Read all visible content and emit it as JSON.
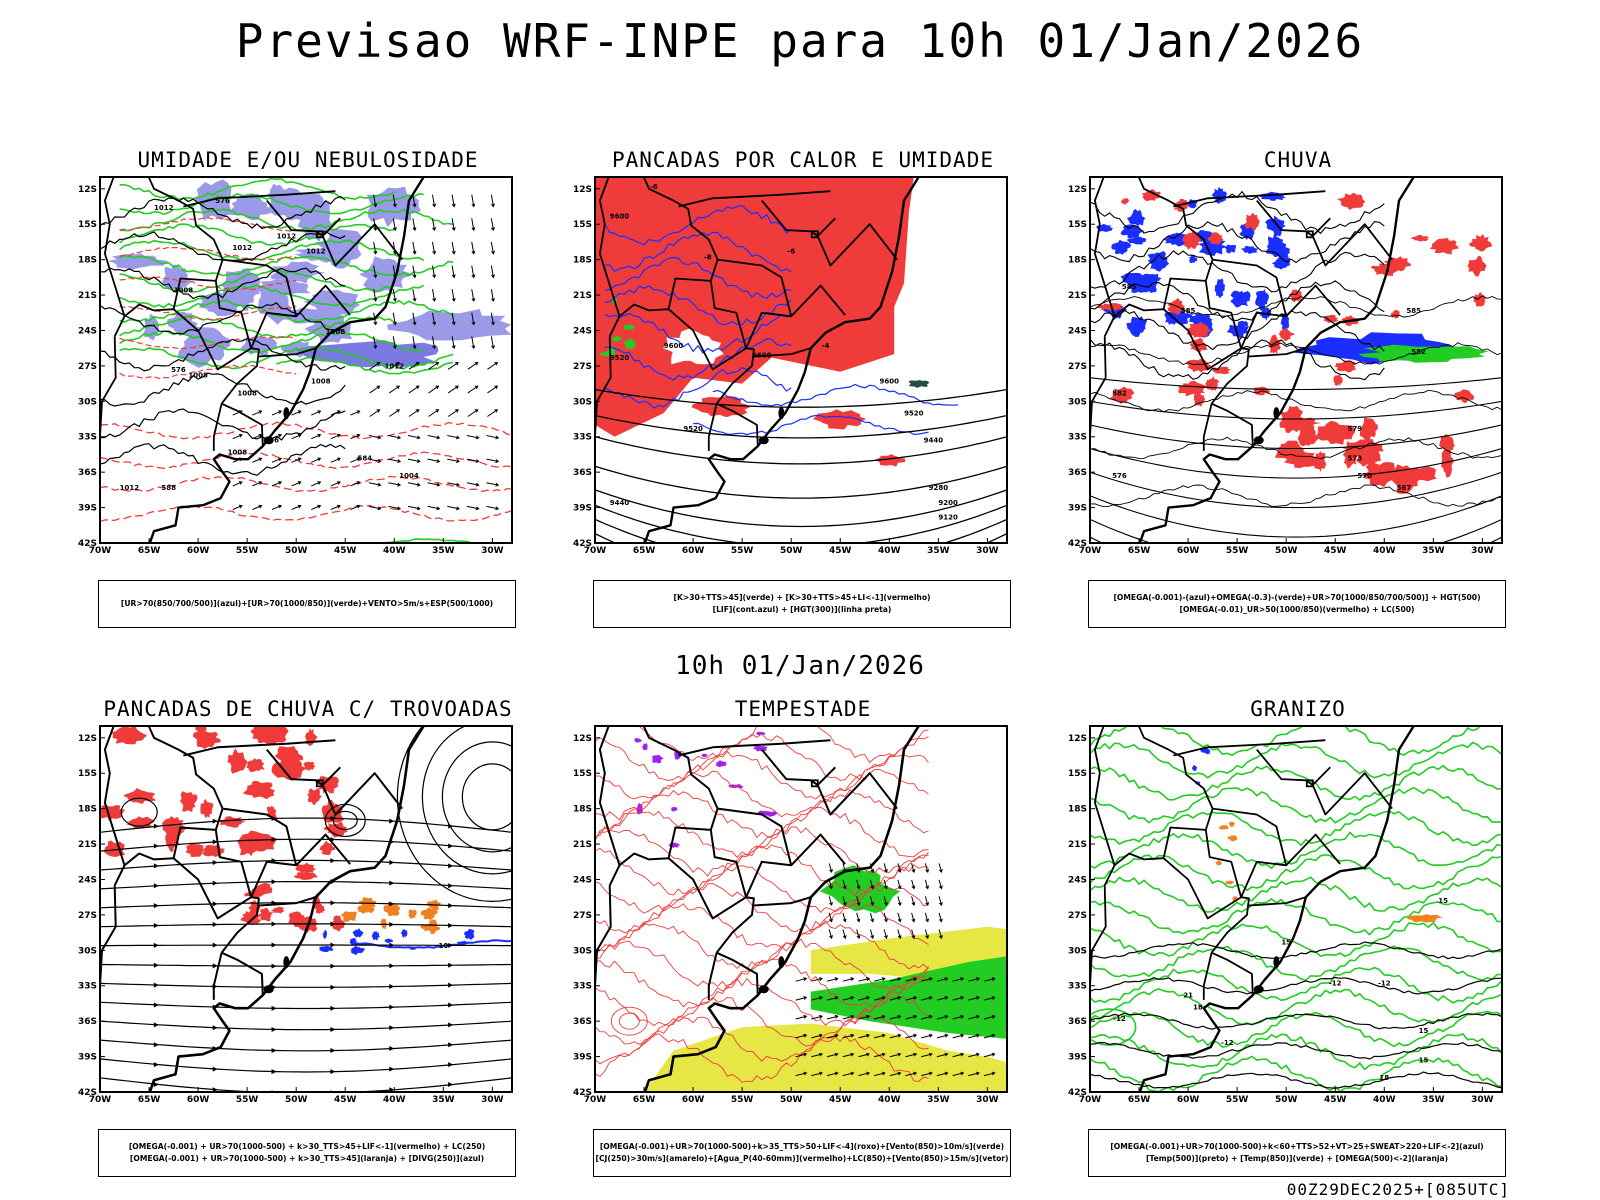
{
  "title": "Previsao WRF-INPE  para 10h 01/Jan/2026",
  "mid_title": "10h 01/Jan/2026",
  "footer": "00Z29DEC2025+[085UTC]",
  "axes": {
    "lat_ticks": [
      "12S",
      "15S",
      "18S",
      "21S",
      "24S",
      "27S",
      "30S",
      "33S",
      "36S",
      "39S",
      "42S"
    ],
    "lon_ticks": [
      "70W",
      "65W",
      "60W",
      "55W",
      "50W",
      "45W",
      "40W",
      "35W",
      "30W"
    ]
  },
  "colors": {
    "red": "#f03b3b",
    "blue": "#1a2fff",
    "green": "#22cc22",
    "lavender": "#9a9ae8",
    "yellow": "#e6e645",
    "purple": "#a020f0",
    "orange": "#f08020",
    "black": "#000000"
  },
  "chart_data": [
    {
      "type": "contour-map",
      "title": "UMIDADE E/OU NEBULOSIDADE",
      "legend": [
        "[UR>70(850/700/500)](azul)+[UR>70(1000/850)](verde)+VENTO>5m/s+ESP(500/1000)"
      ],
      "xlim": [
        -70,
        -28
      ],
      "ylim": [
        -42,
        -11
      ],
      "contour_labels": [
        {
          "text": "1012",
          "lon": -63.5,
          "lat": -13.8
        },
        {
          "text": "1012",
          "lon": -51,
          "lat": -16.2
        },
        {
          "text": "1012",
          "lon": -48,
          "lat": -17.5
        },
        {
          "text": "1012",
          "lon": -55.5,
          "lat": -17.2
        },
        {
          "text": "1008",
          "lon": -61.5,
          "lat": -20.8
        },
        {
          "text": "1008",
          "lon": -46,
          "lat": -24.3
        },
        {
          "text": "1008",
          "lon": -60,
          "lat": -28
        },
        {
          "text": "1008",
          "lon": -47.5,
          "lat": -28.5
        },
        {
          "text": "1008",
          "lon": -55,
          "lat": -29.5
        },
        {
          "text": "1012",
          "lon": -40,
          "lat": -27.2
        },
        {
          "text": "1008",
          "lon": -56,
          "lat": -34.5
        },
        {
          "text": "1012",
          "lon": -67,
          "lat": -37.5
        },
        {
          "text": "576",
          "lon": -57.5,
          "lat": -13.2
        },
        {
          "text": "576",
          "lon": -62,
          "lat": -27.5
        },
        {
          "text": "576",
          "lon": -52.5,
          "lat": -33.5
        },
        {
          "text": "584",
          "lon": -43,
          "lat": -35
        },
        {
          "text": "588",
          "lon": -63,
          "lat": -37.5
        },
        {
          "text": "1004",
          "lon": -38.5,
          "lat": -36.5
        }
      ]
    },
    {
      "type": "contour-map",
      "title": "PANCADAS POR CALOR E UMIDADE",
      "legend": [
        "[K>30+TTS>45](verde) + [K>30+TTS>45+LI<-1](vermelho)",
        "[LIF](cont.azul) + [HGT(300)](linha preta)"
      ],
      "xlim": [
        -70,
        -28
      ],
      "ylim": [
        -42,
        -11
      ],
      "contour_labels": [
        {
          "text": "9600",
          "lon": -67.5,
          "lat": -14.5
        },
        {
          "text": "9600",
          "lon": -62,
          "lat": -25.5
        },
        {
          "text": "9520",
          "lon": -67.5,
          "lat": -26.5
        },
        {
          "text": "9600",
          "lon": -53,
          "lat": -26.3
        },
        {
          "text": "9600",
          "lon": -40,
          "lat": -28.5
        },
        {
          "text": "9520",
          "lon": -37.5,
          "lat": -31.2
        },
        {
          "text": "9520",
          "lon": -60,
          "lat": -32.5
        },
        {
          "text": "9440",
          "lon": -35.5,
          "lat": -33.5
        },
        {
          "text": "9440",
          "lon": -67.5,
          "lat": -38.8
        },
        {
          "text": "9280",
          "lon": -35,
          "lat": -37.5
        },
        {
          "text": "9200",
          "lon": -34,
          "lat": -38.8
        },
        {
          "text": "9120",
          "lon": -34,
          "lat": -40
        },
        {
          "text": "-6",
          "lon": -64,
          "lat": -12
        },
        {
          "text": "-8",
          "lon": -58.5,
          "lat": -18
        },
        {
          "text": "-6",
          "lon": -50,
          "lat": -17.5
        },
        {
          "text": "-4",
          "lon": -46.5,
          "lat": -25.5
        }
      ]
    },
    {
      "type": "contour-map",
      "title": "CHUVA",
      "legend": [
        "[OMEGA(-0.001)-(azul)+OMEGA(-0.3)-(verde)+UR>70(1000/850/700/500)] + HGT(500)",
        "[OMEGA(-0.01)_UR>50(1000/850)(vermelho) + LC(500)"
      ],
      "xlim": [
        -70,
        -28
      ],
      "ylim": [
        -42,
        -11
      ],
      "contour_labels": [
        {
          "text": "585",
          "lon": -66,
          "lat": -20.5
        },
        {
          "text": "585",
          "lon": -60,
          "lat": -22.5
        },
        {
          "text": "585",
          "lon": -37,
          "lat": -22.5
        },
        {
          "text": "582",
          "lon": -36.5,
          "lat": -26
        },
        {
          "text": "582",
          "lon": -67,
          "lat": -29.5
        },
        {
          "text": "579",
          "lon": -43,
          "lat": -32.5
        },
        {
          "text": "573",
          "lon": -43,
          "lat": -35
        },
        {
          "text": "570",
          "lon": -42,
          "lat": -36.5
        },
        {
          "text": "567",
          "lon": -38,
          "lat": -37.5
        },
        {
          "text": "576",
          "lon": -67,
          "lat": -36.5
        }
      ]
    },
    {
      "type": "contour-map",
      "title": "PANCADAS DE CHUVA C/ TROVOADAS",
      "legend": [
        "[OMEGA(-0.001) + UR>70(1000-500) + k>30_TTS>45+LIF<-1](vermelho) + LC(250)",
        "[OMEGA(-0.001) + UR>70(1000-500) + k>30_TTS>45](laranja) + [DIVG(250)](azul)"
      ],
      "xlim": [
        -70,
        -28
      ],
      "ylim": [
        -42,
        -11
      ],
      "contour_labels": [
        {
          "text": "10",
          "lon": -35,
          "lat": -29.8
        }
      ]
    },
    {
      "type": "contour-map",
      "title": "TEMPESTADE",
      "legend": [
        "[OMEGA(-0.001)+UR>70(1000-500)+k>35_TTS>50+LIF<-4](roxo)+[Vento(850)>10m/s](verde)",
        "[CJ(250)>30m/s](amarelo)+[Agua_P(40-60mm)](vermelho)+LC(850)+[Vento(850)>15m/s](vetor)"
      ],
      "xlim": [
        -70,
        -28
      ],
      "ylim": [
        -42,
        -11
      ],
      "contour_labels": []
    },
    {
      "type": "contour-map",
      "title": "GRANIZO",
      "legend": [
        "[OMEGA(-0.001)+UR>70(1000-500)+k<60+TTS>52+VT>25+SWEAT>220+LIF<-2](azul)",
        "[Temp(500)](preto) + [Temp(850)](verde) + [OMEGA(500)<-2](laranja)"
      ],
      "xlim": [
        -70,
        -28
      ],
      "ylim": [
        -42,
        -11
      ],
      "contour_labels": [
        {
          "text": "15",
          "lon": -34,
          "lat": -26
        },
        {
          "text": "15",
          "lon": -50,
          "lat": -29.5
        },
        {
          "text": "-12",
          "lon": -45,
          "lat": -33
        },
        {
          "text": "-12",
          "lon": -40,
          "lat": -33
        },
        {
          "text": "21",
          "lon": -60,
          "lat": -34
        },
        {
          "text": "18",
          "lon": -59,
          "lat": -35
        },
        {
          "text": "-12",
          "lon": -67,
          "lat": -36
        },
        {
          "text": "15",
          "lon": -36,
          "lat": -37
        },
        {
          "text": "-12",
          "lon": -56,
          "lat": -38
        },
        {
          "text": "15",
          "lon": -36,
          "lat": -39.5
        },
        {
          "text": "18",
          "lon": -40,
          "lat": -41
        }
      ]
    }
  ]
}
